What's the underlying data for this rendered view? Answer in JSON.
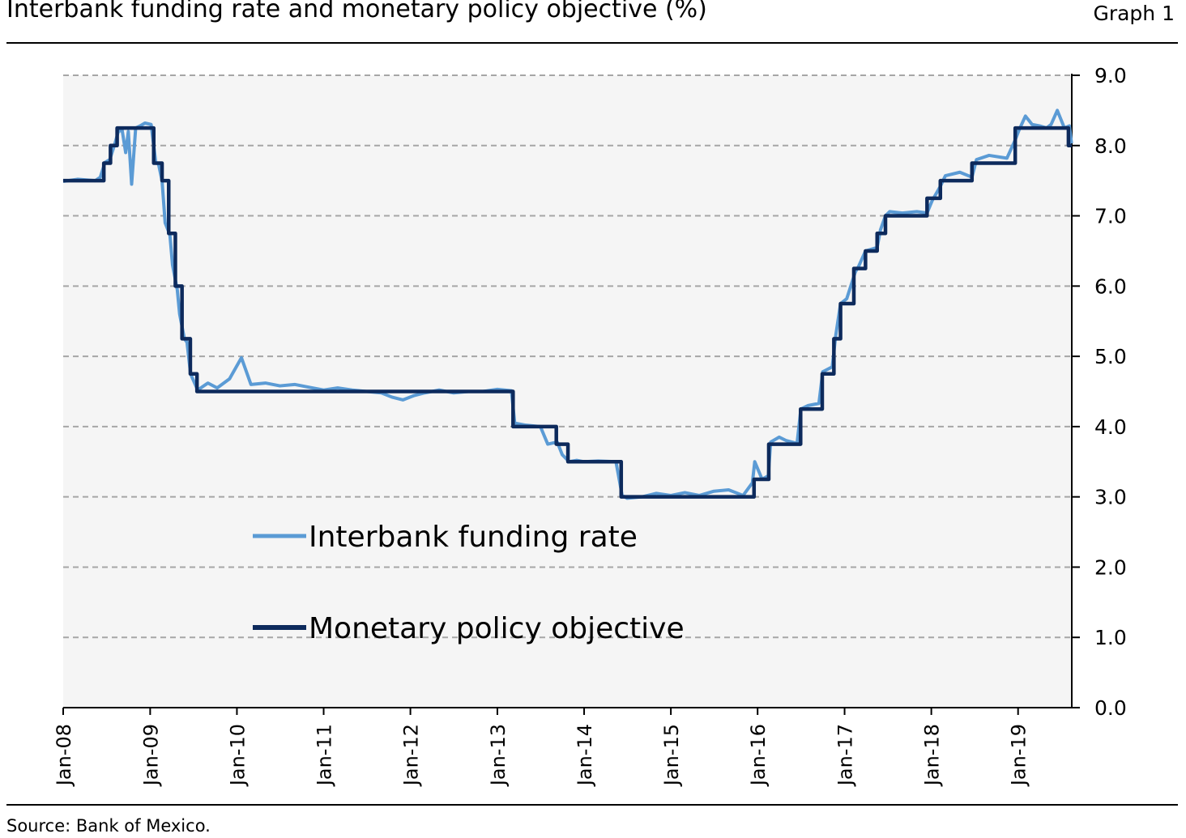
{
  "header": {
    "title": "Interbank funding rate and monetary policy objective (%)",
    "graph_label": "Graph 1"
  },
  "footer": {
    "source": "Source: Bank of Mexico."
  },
  "colors": {
    "plot_background": "#f5f5f5",
    "interbank": "#5b9bd5",
    "policy": "#0d2a5c",
    "grid": "#a6a6a6"
  },
  "chart_data": {
    "type": "line",
    "title": "Interbank funding rate and monetary policy objective (%)",
    "xlabel": "",
    "ylabel": "",
    "ylim": [
      0,
      9
    ],
    "xlim": [
      "2008-01-01",
      "2019-08-15"
    ],
    "y_ticks": [
      "0.0",
      "1.0",
      "2.0",
      "3.0",
      "4.0",
      "5.0",
      "6.0",
      "7.0",
      "8.0",
      "9.0"
    ],
    "x_ticks": [
      {
        "date": "2008-01-01",
        "label": "Jan-08"
      },
      {
        "date": "2009-01-01",
        "label": "Jan-09"
      },
      {
        "date": "2010-01-01",
        "label": "Jan-10"
      },
      {
        "date": "2011-01-01",
        "label": "Jan-11"
      },
      {
        "date": "2012-01-01",
        "label": "Jan-12"
      },
      {
        "date": "2013-01-01",
        "label": "Jan-13"
      },
      {
        "date": "2014-01-01",
        "label": "Jan-14"
      },
      {
        "date": "2015-01-01",
        "label": "Jan-15"
      },
      {
        "date": "2016-01-01",
        "label": "Jan-16"
      },
      {
        "date": "2017-01-01",
        "label": "Jan-17"
      },
      {
        "date": "2018-01-01",
        "label": "Jan-18"
      },
      {
        "date": "2019-01-01",
        "label": "Jan-19"
      }
    ],
    "grid": true,
    "legend_position": "center-left",
    "series": [
      {
        "name": "Interbank funding rate",
        "style": "line",
        "x": [
          "2008-01-01",
          "2008-03-01",
          "2008-05-15",
          "2008-06-05",
          "2008-06-25",
          "2008-07-15",
          "2008-08-05",
          "2008-08-20",
          "2008-09-05",
          "2008-09-20",
          "2008-10-01",
          "2008-10-15",
          "2008-11-01",
          "2008-11-20",
          "2008-12-10",
          "2009-01-05",
          "2009-01-25",
          "2009-02-05",
          "2009-02-20",
          "2009-03-05",
          "2009-03-25",
          "2009-04-05",
          "2009-04-25",
          "2009-05-05",
          "2009-05-25",
          "2009-06-05",
          "2009-06-20",
          "2009-07-20",
          "2009-09-01",
          "2009-10-10",
          "2009-12-01",
          "2010-01-20",
          "2010-03-01",
          "2010-05-01",
          "2010-07-01",
          "2010-09-01",
          "2010-11-01",
          "2011-01-01",
          "2011-03-01",
          "2011-05-01",
          "2011-07-01",
          "2011-09-01",
          "2011-10-15",
          "2011-12-01",
          "2012-01-15",
          "2012-03-01",
          "2012-05-01",
          "2012-07-01",
          "2012-09-01",
          "2012-11-01",
          "2013-01-01",
          "2013-03-01",
          "2013-03-15",
          "2013-05-01",
          "2013-07-01",
          "2013-08-01",
          "2013-09-10",
          "2013-10-01",
          "2013-10-30",
          "2013-12-01",
          "2014-01-01",
          "2014-03-01",
          "2014-05-15",
          "2014-06-10",
          "2014-07-01",
          "2014-09-01",
          "2014-11-01",
          "2015-01-01",
          "2015-03-01",
          "2015-05-01",
          "2015-07-01",
          "2015-09-01",
          "2015-11-01",
          "2015-12-10",
          "2015-12-20",
          "2016-01-20",
          "2016-02-15",
          "2016-02-25",
          "2016-04-01",
          "2016-05-01",
          "2016-06-15",
          "2016-07-01",
          "2016-08-01",
          "2016-09-15",
          "2016-10-01",
          "2016-11-10",
          "2016-11-25",
          "2016-12-15",
          "2017-01-10",
          "2017-02-15",
          "2017-03-01",
          "2017-03-30",
          "2017-04-20",
          "2017-05-18",
          "2017-06-01",
          "2017-06-22",
          "2017-07-10",
          "2017-09-01",
          "2017-11-01",
          "2017-12-14",
          "2018-01-05",
          "2018-02-08",
          "2018-03-01",
          "2018-05-01",
          "2018-06-21",
          "2018-07-10",
          "2018-09-01",
          "2018-11-15",
          "2018-12-20",
          "2019-01-05",
          "2019-02-01",
          "2019-03-01",
          "2019-04-01",
          "2019-05-01",
          "2019-05-20",
          "2019-06-15",
          "2019-07-15",
          "2019-08-05",
          "2019-08-14"
        ],
        "y": [
          7.49,
          7.52,
          7.5,
          7.55,
          7.76,
          7.8,
          8.02,
          8.2,
          8.22,
          7.9,
          8.2,
          7.45,
          8.25,
          8.28,
          8.32,
          8.3,
          7.75,
          7.74,
          7.5,
          6.9,
          6.73,
          6.3,
          5.95,
          5.6,
          5.25,
          5.2,
          4.75,
          4.52,
          4.62,
          4.55,
          4.68,
          4.98,
          4.6,
          4.62,
          4.58,
          4.6,
          4.56,
          4.52,
          4.55,
          4.52,
          4.5,
          4.48,
          4.42,
          4.38,
          4.44,
          4.48,
          4.52,
          4.48,
          4.5,
          4.5,
          4.53,
          4.51,
          4.05,
          4.02,
          4.0,
          3.75,
          3.78,
          3.6,
          3.5,
          3.52,
          3.5,
          3.51,
          3.5,
          3.02,
          2.98,
          3.0,
          3.05,
          3.02,
          3.06,
          3.02,
          3.08,
          3.1,
          3.02,
          3.2,
          3.5,
          3.25,
          3.3,
          3.78,
          3.85,
          3.8,
          3.76,
          4.25,
          4.3,
          4.33,
          4.78,
          4.85,
          5.3,
          5.75,
          5.82,
          6.2,
          6.28,
          6.5,
          6.52,
          6.55,
          6.8,
          7.0,
          7.06,
          7.04,
          7.06,
          7.04,
          7.22,
          7.42,
          7.57,
          7.62,
          7.55,
          7.8,
          7.86,
          7.82,
          8.08,
          8.22,
          8.42,
          8.3,
          8.28,
          8.25,
          8.3,
          8.5,
          8.25,
          8.28,
          8.03
        ]
      },
      {
        "name": "Monetary policy objective",
        "style": "step",
        "x": [
          "2008-01-01",
          "2008-06-20",
          "2008-07-18",
          "2008-08-15",
          "2009-01-16",
          "2009-02-20",
          "2009-03-20",
          "2009-04-17",
          "2009-05-15",
          "2009-06-19",
          "2009-07-17",
          "2013-03-08",
          "2013-09-06",
          "2013-10-25",
          "2014-06-06",
          "2015-12-17",
          "2016-02-17",
          "2016-06-30",
          "2016-09-29",
          "2016-11-17",
          "2016-12-15",
          "2017-02-09",
          "2017-03-30",
          "2017-05-18",
          "2017-06-22",
          "2017-12-14",
          "2018-02-08",
          "2018-06-21",
          "2018-12-20",
          "2019-08-01",
          "2019-08-15"
        ],
        "y": [
          7.5,
          7.75,
          8.0,
          8.25,
          7.75,
          7.5,
          6.75,
          6.0,
          5.25,
          4.75,
          4.5,
          4.0,
          3.75,
          3.5,
          3.0,
          3.25,
          3.75,
          4.25,
          4.75,
          5.25,
          5.75,
          6.25,
          6.5,
          6.75,
          7.0,
          7.25,
          7.5,
          7.75,
          8.25,
          8.0,
          8.0
        ]
      }
    ]
  },
  "legend": {
    "items": [
      {
        "label": "Interbank funding rate",
        "color": "#5b9bd5"
      },
      {
        "label": "Monetary policy objective",
        "color": "#0d2a5c"
      }
    ]
  }
}
